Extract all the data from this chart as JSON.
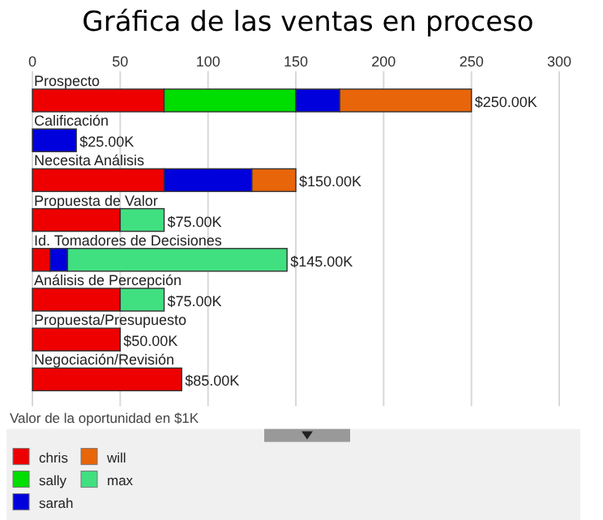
{
  "chart_data": {
    "type": "bar",
    "orientation": "horizontal",
    "stacked": true,
    "title": "Gráfica de las ventas en proceso",
    "xlabel": "Valor de la oportunidad en $1K",
    "categories": [
      "Prospecto",
      "Calificación",
      "Necesita Análisis",
      "Propuesta de Valor",
      "Id. Tomadores de Decisiones",
      "Análisis de Percepción",
      "Propuesta/Presupuesto",
      "Negociación/Revisión"
    ],
    "series": [
      {
        "name": "chris",
        "color": "#ee0000",
        "values": [
          75,
          0,
          75,
          50,
          10,
          50,
          50,
          85
        ]
      },
      {
        "name": "sally",
        "color": "#00dd00",
        "values": [
          75,
          0,
          0,
          0,
          0,
          0,
          0,
          0
        ]
      },
      {
        "name": "sarah",
        "color": "#0000dd",
        "values": [
          25,
          25,
          50,
          0,
          10,
          0,
          0,
          0
        ]
      },
      {
        "name": "will",
        "color": "#e8650a",
        "values": [
          75,
          0,
          25,
          0,
          0,
          0,
          0,
          0
        ]
      },
      {
        "name": "max",
        "color": "#40e080",
        "values": [
          0,
          0,
          0,
          25,
          125,
          25,
          0,
          0
        ]
      }
    ],
    "totals": [
      "$250.00K",
      "$25.00K",
      "$150.00K",
      "$75.00K",
      "$145.00K",
      "$75.00K",
      "$50.00K",
      "$85.00K"
    ],
    "xlim": [
      0,
      300
    ],
    "xticks": [
      0,
      50,
      100,
      150,
      200,
      250,
      300
    ],
    "grid": "x",
    "legend": "bottom"
  }
}
